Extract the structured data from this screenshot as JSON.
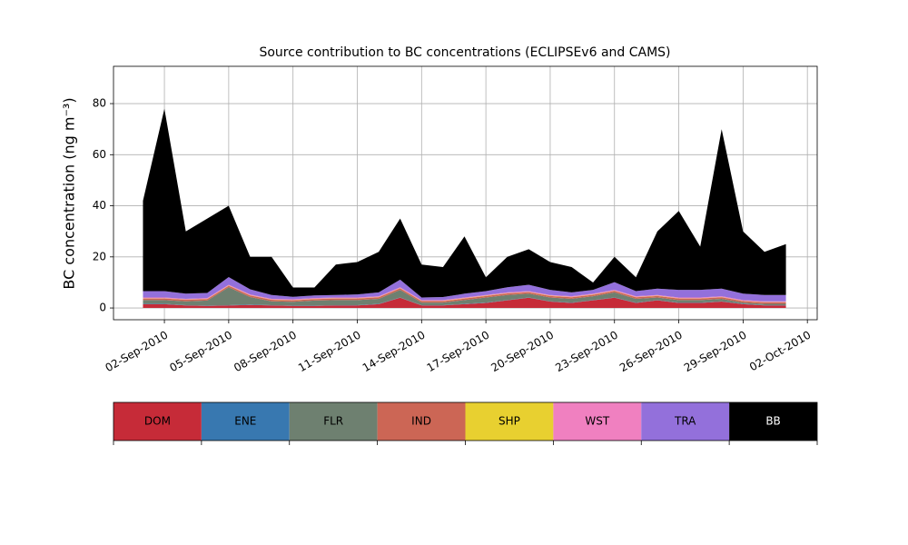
{
  "chart_data": {
    "type": "stacked_area",
    "title": "Source contribution to BC concentrations (ECLIPSEv6 and CAMS)",
    "y_label": "BC concentration (ng m⁻³)",
    "x": [
      "2010-09-01",
      "2010-09-02",
      "2010-09-03",
      "2010-09-04",
      "2010-09-05",
      "2010-09-06",
      "2010-09-07",
      "2010-09-08",
      "2010-09-09",
      "2010-09-10",
      "2010-09-11",
      "2010-09-12",
      "2010-09-13",
      "2010-09-14",
      "2010-09-15",
      "2010-09-16",
      "2010-09-17",
      "2010-09-18",
      "2010-09-19",
      "2010-09-20",
      "2010-09-21",
      "2010-09-22",
      "2010-09-23",
      "2010-09-24",
      "2010-09-25",
      "2010-09-26",
      "2010-09-27",
      "2010-09-28",
      "2010-09-29",
      "2010-09-30",
      "2010-10-01"
    ],
    "series": [
      {
        "name": "DOM",
        "color": "#c62b38",
        "values": [
          1.5,
          1.5,
          1,
          0.8,
          1,
          1.2,
          1,
          0.8,
          0.8,
          1,
          1,
          1.5,
          4,
          1,
          1,
          1.5,
          2,
          3,
          4,
          2.5,
          2,
          3,
          4,
          2,
          3,
          2,
          2,
          2.5,
          1.5,
          1,
          1
        ]
      },
      {
        "name": "ENE",
        "color": "#3878b0",
        "values": [
          0.1,
          0.1,
          0.1,
          0.1,
          0.1,
          0.1,
          0.1,
          0.1,
          0.1,
          0.1,
          0.1,
          0.1,
          0.1,
          0.1,
          0.1,
          0.1,
          0.1,
          0.1,
          0.1,
          0.1,
          0.1,
          0.1,
          0.1,
          0.1,
          0.1,
          0.1,
          0.1,
          0.1,
          0.1,
          0.1,
          0.1
        ]
      },
      {
        "name": "FLR",
        "color": "#6e8070",
        "values": [
          1.5,
          1.5,
          1.5,
          2,
          7,
          3,
          1.5,
          1.5,
          2,
          2,
          2,
          2,
          3,
          1,
          1,
          1.5,
          2,
          2,
          1.5,
          1.5,
          1.5,
          1.5,
          2,
          1.5,
          1,
          1,
          1,
          1,
          0.5,
          0.5,
          0.5
        ]
      },
      {
        "name": "IND",
        "color": "#cc6655",
        "values": [
          0.6,
          0.6,
          0.6,
          0.6,
          0.6,
          0.6,
          0.6,
          0.6,
          0.6,
          0.6,
          0.6,
          0.6,
          0.6,
          0.6,
          0.6,
          0.6,
          0.6,
          0.6,
          0.6,
          0.6,
          0.6,
          0.6,
          0.6,
          0.6,
          0.6,
          0.6,
          0.6,
          0.6,
          0.6,
          0.6,
          0.6
        ]
      },
      {
        "name": "SHP",
        "color": "#e8d030",
        "values": [
          0.1,
          0.1,
          0.1,
          0.1,
          0.1,
          0.1,
          0.1,
          0.1,
          0.1,
          0.1,
          0.1,
          0.1,
          0.1,
          0.1,
          0.1,
          0.1,
          0.1,
          0.1,
          0.1,
          0.1,
          0.1,
          0.1,
          0.1,
          0.1,
          0.1,
          0.1,
          0.1,
          0.1,
          0.1,
          0.1,
          0.1
        ]
      },
      {
        "name": "WST",
        "color": "#f080c0",
        "values": [
          0.3,
          0.3,
          0.3,
          0.3,
          0.3,
          0.3,
          0.3,
          0.3,
          0.3,
          0.3,
          0.3,
          0.3,
          0.3,
          0.3,
          0.3,
          0.3,
          0.3,
          0.3,
          0.3,
          0.3,
          0.3,
          0.3,
          0.3,
          0.3,
          0.3,
          0.3,
          0.3,
          0.3,
          0.3,
          0.3,
          0.3
        ]
      },
      {
        "name": "TRA",
        "color": "#9370db",
        "values": [
          2.5,
          2.5,
          2,
          2,
          3,
          2,
          1.5,
          1,
          1,
          1,
          1.2,
          1.5,
          3,
          1,
          1.2,
          1.5,
          1.5,
          2,
          2.5,
          2,
          1.5,
          1.5,
          3,
          2,
          2.5,
          3,
          3,
          3,
          2.5,
          2.5,
          2.5
        ]
      },
      {
        "name": "BB",
        "color": "#000000",
        "values": [
          35.4,
          71.4,
          24.4,
          29.1,
          27.9,
          12.7,
          14.9,
          3.6,
          3.1,
          11.9,
          12.7,
          15.9,
          23.9,
          12.9,
          11.7,
          22.4,
          5.4,
          11.9,
          13.9,
          10.9,
          9.9,
          2.9,
          9.9,
          5.4,
          22.4,
          30.9,
          16.9,
          62.4,
          24.4,
          16.9,
          19.9
        ]
      }
    ],
    "xlim": [
      "2010-08-30T15:00",
      "2010-10-02T11:00"
    ],
    "xticks": [
      {
        "value": "2010-09-02",
        "label": "02-Sep-2010"
      },
      {
        "value": "2010-09-05",
        "label": "05-Sep-2010"
      },
      {
        "value": "2010-09-08",
        "label": "08-Sep-2010"
      },
      {
        "value": "2010-09-11",
        "label": "11-Sep-2010"
      },
      {
        "value": "2010-09-14",
        "label": "14-Sep-2010"
      },
      {
        "value": "2010-09-17",
        "label": "17-Sep-2010"
      },
      {
        "value": "2010-09-20",
        "label": "20-Sep-2010"
      },
      {
        "value": "2010-09-23",
        "label": "23-Sep-2010"
      },
      {
        "value": "2010-09-26",
        "label": "26-Sep-2010"
      },
      {
        "value": "2010-09-29",
        "label": "29-Sep-2010"
      },
      {
        "value": "2010-10-02",
        "label": "02-Oct-2010"
      }
    ],
    "ylim": [
      -4.6,
      94.6
    ],
    "yticks": [
      0,
      20,
      40,
      60,
      80
    ],
    "grid": true
  }
}
